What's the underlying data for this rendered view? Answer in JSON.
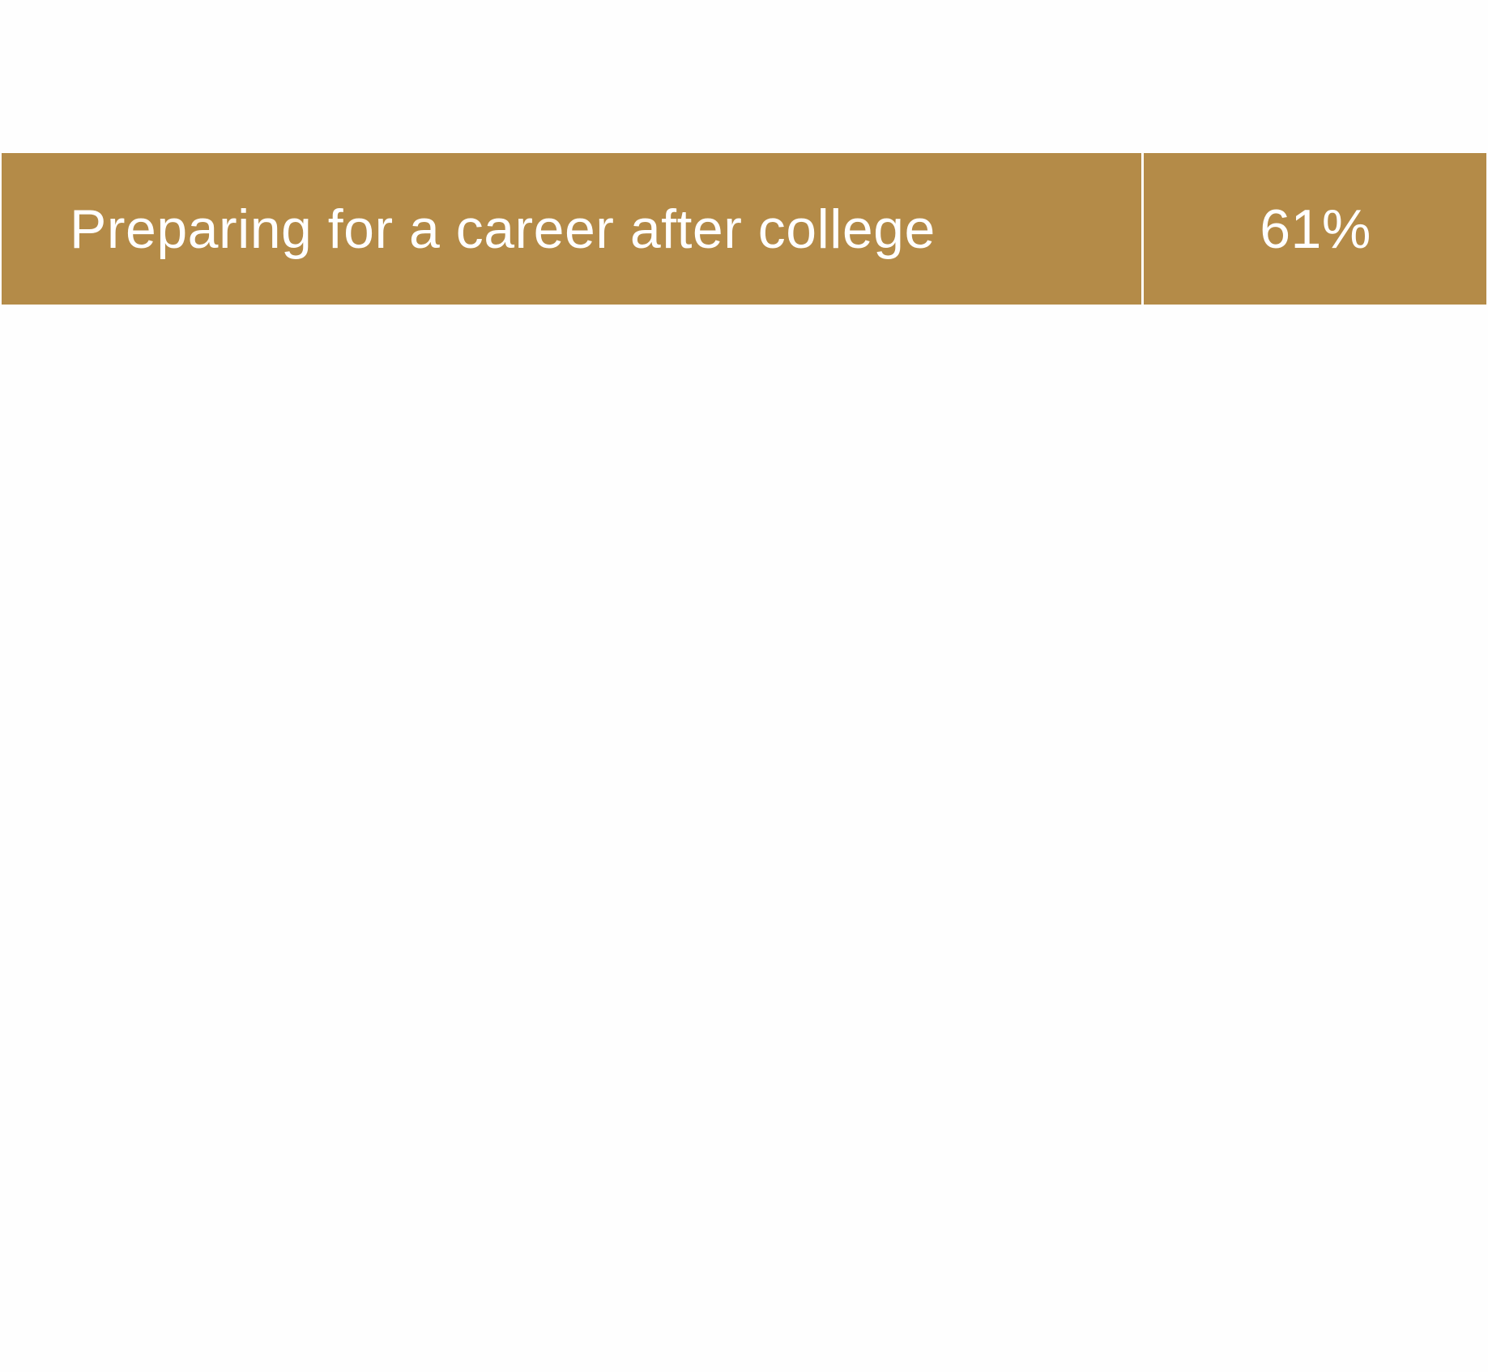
{
  "colors": {
    "row_background": "#b48b48",
    "text": "#ffffff",
    "page_background": "#fefefe"
  },
  "table": {
    "rows": [
      {
        "label": "Preparing for a career after college",
        "value": "61%"
      }
    ]
  }
}
